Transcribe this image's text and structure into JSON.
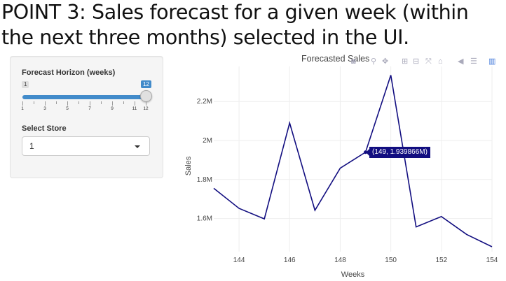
{
  "slide": {
    "title": "POINT 3: Sales forecast for a given week (within the next three months) selected in the UI."
  },
  "sidebar": {
    "horizon_label": "Forecast Horizon (weeks)",
    "slider": {
      "min": 1,
      "max": 12,
      "value": 12,
      "min_label": "1",
      "max_label": "12",
      "tick_labels": [
        "1",
        "3",
        "5",
        "7",
        "9",
        "11",
        "12"
      ]
    },
    "store_label": "Select Store",
    "store_value": "1"
  },
  "modebar_icons": [
    "camera-icon",
    "zoom-icon",
    "pan-icon",
    "zoom-in-icon",
    "zoom-out-icon",
    "autoscale-icon",
    "home-icon",
    "spike-lines-icon",
    "compare-hover-icon",
    "closest-hover-icon",
    "plotly-logo-icon"
  ],
  "tooltip": {
    "text": "(149, 1.939866M)"
  },
  "colors": {
    "line": "#120e80",
    "accent": "#428bca",
    "tooltip_bg": "#120e80"
  },
  "chart_data": {
    "type": "line",
    "title": "Forecasted Sales",
    "xlabel": "Weeks",
    "ylabel": "Sales",
    "x_ticks": [
      "144",
      "146",
      "148",
      "150",
      "152",
      "154"
    ],
    "y_ticks": [
      "1.6M",
      "1.8M",
      "2M",
      "2.2M"
    ],
    "x_tick_values": [
      144,
      146,
      148,
      150,
      152,
      154
    ],
    "y_tick_values": [
      1600000,
      1800000,
      2000000,
      2200000
    ],
    "xlim": [
      143,
      154
    ],
    "ylim": [
      1430000,
      2380000
    ],
    "grid": true,
    "series": [
      {
        "x": [
          143,
          144,
          145,
          146,
          147,
          148,
          149,
          150,
          151,
          152,
          153,
          154
        ],
        "y": [
          1755000,
          1652000,
          1598000,
          2090000,
          1642000,
          1858000,
          1939866,
          2335000,
          1557000,
          1610000,
          1518000,
          1455000
        ]
      }
    ]
  }
}
